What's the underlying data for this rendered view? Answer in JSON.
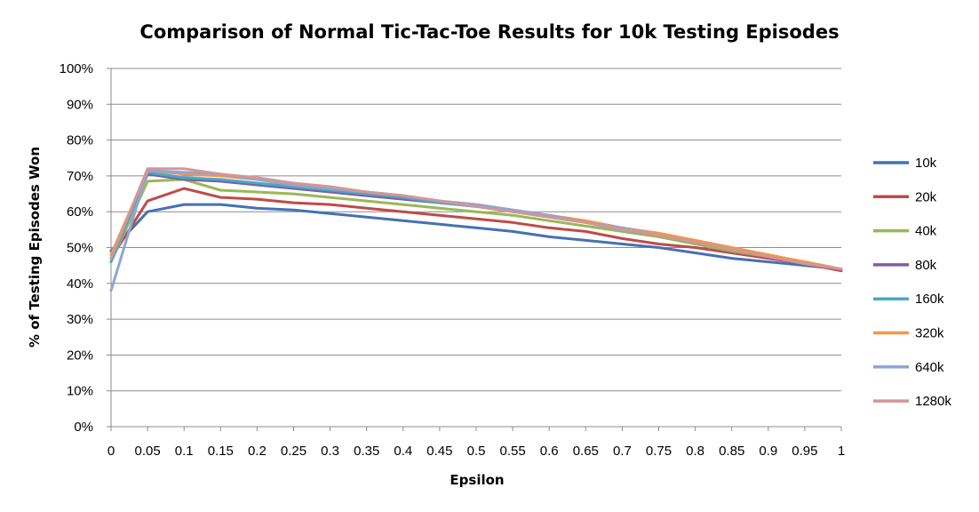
{
  "chart_data": {
    "type": "line",
    "title": "Comparison of Normal Tic-Tac-Toe Results for 10k Testing Episodes",
    "xlabel": "Epsilon",
    "ylabel": "% of Testing Episodes Won",
    "xlim": [
      0,
      1
    ],
    "ylim": [
      0,
      1
    ],
    "xticks": [
      "0",
      "0.05",
      "0.1",
      "0.15",
      "0.2",
      "0.25",
      "0.3",
      "0.35",
      "0.4",
      "0.45",
      "0.5",
      "0.55",
      "0.6",
      "0.65",
      "0.7",
      "0.75",
      "0.8",
      "0.85",
      "0.9",
      "0.95",
      "1"
    ],
    "yticks": [
      "0%",
      "10%",
      "20%",
      "30%",
      "40%",
      "50%",
      "60%",
      "70%",
      "80%",
      "90%",
      "100%"
    ],
    "grid": true,
    "legend_position": "right",
    "x": [
      0,
      0.05,
      0.1,
      0.15,
      0.2,
      0.25,
      0.3,
      0.35,
      0.4,
      0.45,
      0.5,
      0.55,
      0.6,
      0.65,
      0.7,
      0.75,
      0.8,
      0.85,
      0.9,
      0.95,
      1
    ],
    "series": [
      {
        "name": "10k",
        "color": "#4471B4",
        "values": [
          0.49,
          0.6,
          0.62,
          0.62,
          0.61,
          0.605,
          0.595,
          0.585,
          0.575,
          0.565,
          0.555,
          0.545,
          0.53,
          0.52,
          0.51,
          0.5,
          0.485,
          0.47,
          0.46,
          0.45,
          0.44
        ]
      },
      {
        "name": "20k",
        "color": "#BE4B48",
        "values": [
          0.47,
          0.63,
          0.665,
          0.64,
          0.635,
          0.625,
          0.62,
          0.61,
          0.6,
          0.59,
          0.58,
          0.57,
          0.555,
          0.545,
          0.525,
          0.51,
          0.5,
          0.485,
          0.47,
          0.455,
          0.435
        ]
      },
      {
        "name": "40k",
        "color": "#98B954",
        "values": [
          0.46,
          0.685,
          0.69,
          0.66,
          0.655,
          0.65,
          0.64,
          0.63,
          0.62,
          0.61,
          0.6,
          0.59,
          0.575,
          0.56,
          0.545,
          0.53,
          0.51,
          0.49,
          0.475,
          0.46,
          0.44
        ]
      },
      {
        "name": "80k",
        "color": "#7D5FA0",
        "values": [
          0.47,
          0.705,
          0.69,
          0.685,
          0.675,
          0.665,
          0.655,
          0.645,
          0.635,
          0.625,
          0.615,
          0.6,
          0.585,
          0.57,
          0.55,
          0.535,
          0.515,
          0.495,
          0.475,
          0.455,
          0.44
        ]
      },
      {
        "name": "160k",
        "color": "#46AAC5",
        "values": [
          0.46,
          0.71,
          0.695,
          0.69,
          0.68,
          0.67,
          0.66,
          0.65,
          0.64,
          0.625,
          0.615,
          0.6,
          0.585,
          0.57,
          0.55,
          0.535,
          0.515,
          0.495,
          0.475,
          0.455,
          0.44
        ]
      },
      {
        "name": "320k",
        "color": "#F69545",
        "values": [
          0.48,
          0.715,
          0.705,
          0.7,
          0.69,
          0.675,
          0.665,
          0.655,
          0.645,
          0.63,
          0.62,
          0.605,
          0.59,
          0.575,
          0.555,
          0.54,
          0.52,
          0.5,
          0.48,
          0.46,
          0.44
        ]
      },
      {
        "name": "640k",
        "color": "#8EA5D5",
        "values": [
          0.38,
          0.715,
          0.71,
          0.705,
          0.69,
          0.675,
          0.665,
          0.655,
          0.645,
          0.63,
          0.62,
          0.605,
          0.59,
          0.57,
          0.555,
          0.535,
          0.515,
          0.495,
          0.475,
          0.455,
          0.44
        ]
      },
      {
        "name": "1280k",
        "color": "#D69594",
        "values": [
          0.47,
          0.72,
          0.72,
          0.705,
          0.695,
          0.68,
          0.67,
          0.655,
          0.645,
          0.63,
          0.615,
          0.6,
          0.585,
          0.57,
          0.55,
          0.535,
          0.515,
          0.495,
          0.475,
          0.455,
          0.44
        ]
      }
    ]
  }
}
